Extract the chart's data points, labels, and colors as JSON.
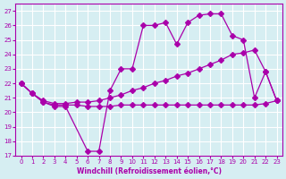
{
  "bg_color": "#d6eef2",
  "grid_color": "#ffffff",
  "line_color": "#aa00aa",
  "marker": "D",
  "marker_size": 3,
  "xlabel": "Windchill (Refroidissement éolien,°C)",
  "ylabel": "",
  "xlim": [
    -0.5,
    23.5
  ],
  "ylim": [
    17,
    27.5
  ],
  "yticks": [
    17,
    18,
    19,
    20,
    21,
    22,
    23,
    24,
    25,
    26,
    27
  ],
  "xticks": [
    0,
    1,
    2,
    3,
    4,
    5,
    6,
    7,
    8,
    9,
    10,
    11,
    12,
    13,
    14,
    15,
    16,
    17,
    18,
    19,
    20,
    21,
    22,
    23
  ],
  "series": [
    {
      "x": [
        0,
        1,
        2,
        3,
        4,
        6,
        7,
        8,
        9,
        10,
        11,
        12,
        13,
        14,
        15,
        16,
        17,
        18,
        19,
        20,
        21,
        22,
        23
      ],
      "y": [
        22.0,
        21.3,
        20.7,
        20.4,
        20.4,
        17.3,
        17.3,
        21.5,
        23.0,
        23.0,
        26.0,
        26.0,
        26.2,
        24.7,
        26.2,
        26.7,
        26.8,
        26.8,
        25.3,
        25.0,
        21.0,
        22.8,
        20.8
      ]
    },
    {
      "x": [
        0,
        1,
        2,
        3,
        4,
        5,
        6,
        7,
        8,
        9,
        10,
        11,
        12,
        13,
        14,
        15,
        16,
        17,
        18,
        19,
        20,
        21,
        22,
        23
      ],
      "y": [
        22.0,
        21.3,
        20.7,
        20.5,
        20.5,
        20.5,
        20.4,
        20.4,
        20.4,
        20.5,
        20.5,
        20.5,
        20.5,
        20.5,
        20.5,
        20.5,
        20.5,
        20.5,
        20.5,
        20.5,
        20.5,
        20.5,
        20.6,
        20.8
      ]
    },
    {
      "x": [
        0,
        1,
        2,
        3,
        4,
        5,
        6,
        7,
        8,
        9,
        10,
        11,
        12,
        13,
        14,
        15,
        16,
        17,
        18,
        19,
        20,
        21,
        22,
        23
      ],
      "y": [
        22.0,
        21.3,
        20.8,
        20.6,
        20.6,
        20.7,
        20.7,
        20.8,
        21.0,
        21.2,
        21.5,
        21.7,
        22.0,
        22.2,
        22.5,
        22.7,
        23.0,
        23.3,
        23.6,
        24.0,
        24.1,
        24.3,
        22.8,
        20.8
      ]
    }
  ]
}
